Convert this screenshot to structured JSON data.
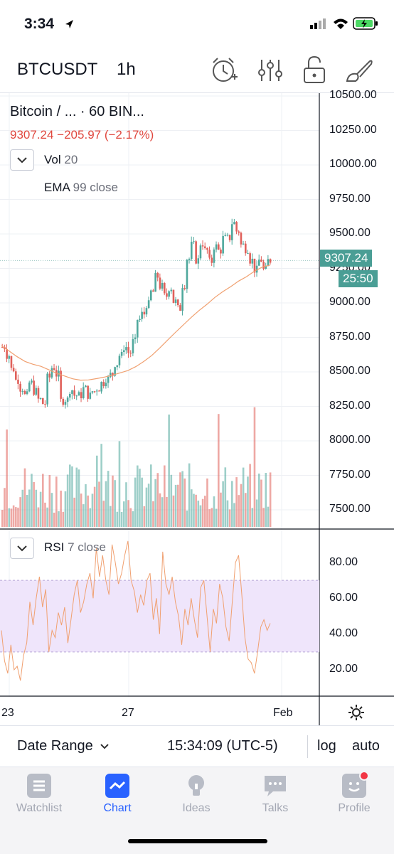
{
  "status": {
    "time": "3:34"
  },
  "header": {
    "symbol": "BTCUSDT",
    "interval": "1h"
  },
  "legend": {
    "title": "Bitcoin / ...  · 60  BIN...",
    "values": "9307.24  −205.97 (−2.17%)",
    "vol_label": "Vol",
    "vol_len": "20",
    "ema_label": "EMA",
    "ema_args": "99 close",
    "rsi_label": "RSI",
    "rsi_args": "7 close"
  },
  "price_axis": {
    "labels": [
      "10500.00",
      "10250.00",
      "10000.00",
      "9750.00",
      "9500.00",
      "9250.00",
      "9000.00",
      "8750.00",
      "8500.00",
      "8250.00",
      "8000.00",
      "7750.00",
      "7500.00"
    ],
    "last_price": "9307.24",
    "countdown": "25:50"
  },
  "rsi_axis": {
    "labels": [
      "80.00",
      "60.00",
      "40.00",
      "20.00"
    ]
  },
  "time_axis": {
    "labels": [
      "23",
      "27",
      "Feb"
    ]
  },
  "bottom": {
    "date_range": "Date Range",
    "clock": "15:34:09 (UTC-5)",
    "log": "log",
    "auto": "auto"
  },
  "tabs": [
    {
      "label": "Watchlist",
      "icon": "watchlist-icon"
    },
    {
      "label": "Chart",
      "icon": "chart-icon"
    },
    {
      "label": "Ideas",
      "icon": "ideas-icon"
    },
    {
      "label": "Talks",
      "icon": "talks-icon"
    },
    {
      "label": "Profile",
      "icon": "profile-icon"
    }
  ],
  "colors": {
    "up": "#4fa89d",
    "down": "#e0605a",
    "ema": "#f0a070",
    "rsi": "#f0a070",
    "rsi_band": "#efe5fb",
    "accent": "#2962ff"
  },
  "chart_data": {
    "type": "candlestick",
    "symbol": "Bitcoin / BINANCE (BTCUSDT)",
    "interval": "60",
    "price_path": [
      8680,
      8620,
      8520,
      8440,
      8380,
      8330,
      8420,
      8360,
      8300,
      8270,
      8460,
      8530,
      8480,
      8290,
      8300,
      8370,
      8330,
      8330,
      8380,
      8330,
      8360,
      8380,
      8420,
      8450,
      8480,
      8560,
      8620,
      8680,
      8640,
      8720,
      8880,
      8920,
      8990,
      9080,
      9190,
      9120,
      9050,
      9110,
      9010,
      8960,
      9130,
      9320,
      9420,
      9310,
      9430,
      9380,
      9300,
      9410,
      9380,
      9470,
      9470,
      9580,
      9520,
      9420,
      9390,
      9310,
      9240,
      9310,
      9240,
      9307
    ],
    "ema_path": [
      8690,
      8650,
      8610,
      8575,
      8555,
      8540,
      8515,
      8490,
      8470,
      8450,
      8440,
      8442,
      8451,
      8462,
      8476,
      8493,
      8510,
      8538,
      8575,
      8618,
      8672,
      8730,
      8786,
      8840,
      8895,
      8945,
      8990,
      9040,
      9082,
      9118,
      9158,
      9190,
      9230,
      9260,
      9275
    ],
    "rsi_path": [
      42,
      25,
      18,
      34,
      20,
      22,
      14,
      28,
      35,
      58,
      45,
      60,
      72,
      55,
      65,
      30,
      42,
      38,
      52,
      45,
      55,
      35,
      48,
      62,
      70,
      52,
      58,
      68,
      74,
      60,
      88,
      72,
      84,
      70,
      62,
      90,
      80,
      68,
      74,
      84,
      92,
      70,
      64,
      52,
      62,
      56,
      70,
      74,
      48,
      60,
      40,
      86,
      68,
      62,
      72,
      58,
      50,
      34,
      54,
      45,
      60,
      48,
      38,
      66,
      70,
      50,
      30,
      54,
      46,
      68,
      60,
      44,
      36,
      58,
      80,
      84,
      62,
      38,
      26,
      24,
      18,
      30,
      44,
      48,
      42,
      46
    ],
    "y_axis": {
      "min": 7400,
      "max": 10500,
      "unit": "USDT"
    },
    "rsi_range": [
      0,
      100
    ],
    "rsi_band": [
      30,
      70
    ],
    "last_price": 9307.24,
    "change": -205.97,
    "change_pct": -2.17
  }
}
